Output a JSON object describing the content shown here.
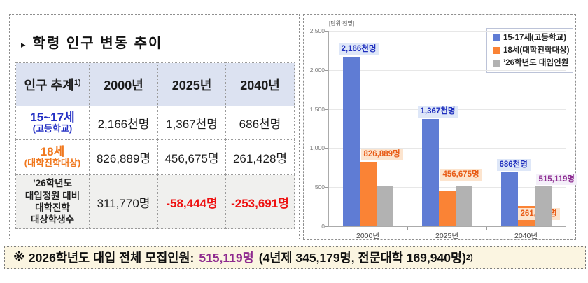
{
  "left_panel": {
    "bullet": "▸",
    "title": "학령 인구 변동 추이",
    "table": {
      "header": {
        "col0": "인구 추계",
        "col0_sup": "1)",
        "col1": "2000년",
        "col2": "2025년",
        "col3": "2040년"
      },
      "row_high": {
        "label": "15~17세",
        "sublabel": "(고등학교)",
        "v2000": "2,166천명",
        "v2025": "1,367천명",
        "v2040": "686천명"
      },
      "row_18": {
        "label": "18세",
        "sublabel": "(대학진학대상)",
        "v2000": "826,889명",
        "v2025": "456,675명",
        "v2040": "261,428명"
      },
      "row_gap": {
        "label_line1": "’26학년도",
        "label_line2": "대입정원 대비",
        "label_line3": "대학진학",
        "label_line4": "대상학생수",
        "v2000": "311,770명",
        "v2025": "-58,444명",
        "v2040": "-253,691명"
      }
    }
  },
  "chart_data": {
    "type": "bar",
    "unit_label": "[단위:천명]",
    "categories": [
      "2000년",
      "2025년",
      "2040년"
    ],
    "series": [
      {
        "name": "15-17세(고등학교)",
        "color": "#5F7CD4",
        "values": [
          2166,
          1367,
          686
        ],
        "data_labels": [
          "2,166천명",
          "1,367천명",
          "686천명"
        ],
        "label_text_color": "#1F2FBE",
        "label_bg": "#DEE7F8"
      },
      {
        "name": "18세(대학진학대상)",
        "color": "#FA8335",
        "values": [
          826.889,
          456.675,
          261.428
        ],
        "data_labels": [
          "826,889명",
          "456,675명",
          "261,428명"
        ],
        "label_text_color": "#E85C17",
        "label_bg": "#FCE4CE"
      },
      {
        "name": "’26학년도 대입인원",
        "color": "#B2B2B2",
        "values": [
          515.119,
          515.119,
          515.119
        ],
        "data_labels": [
          "",
          "",
          "515,119명"
        ],
        "label_text_color": "#8E2E92",
        "label_bg": "#F4EFF9"
      }
    ],
    "ylim": [
      0,
      2500
    ],
    "ytick_step": 500,
    "yticks": [
      "0",
      "500",
      "1,000",
      "1,500",
      "2,000",
      "2,500"
    ],
    "grid": true,
    "legend_position": "top-right",
    "xlabel": "",
    "ylabel": ""
  },
  "footnote": {
    "marker": "※",
    "text": "2026학년도 대입 전체 모집인원:",
    "highlight": "515,119명",
    "highlight_color": "#8E2A8E",
    "detail": "(4년제 345,179명, 전문대학 169,940명)",
    "sup": "2)"
  }
}
